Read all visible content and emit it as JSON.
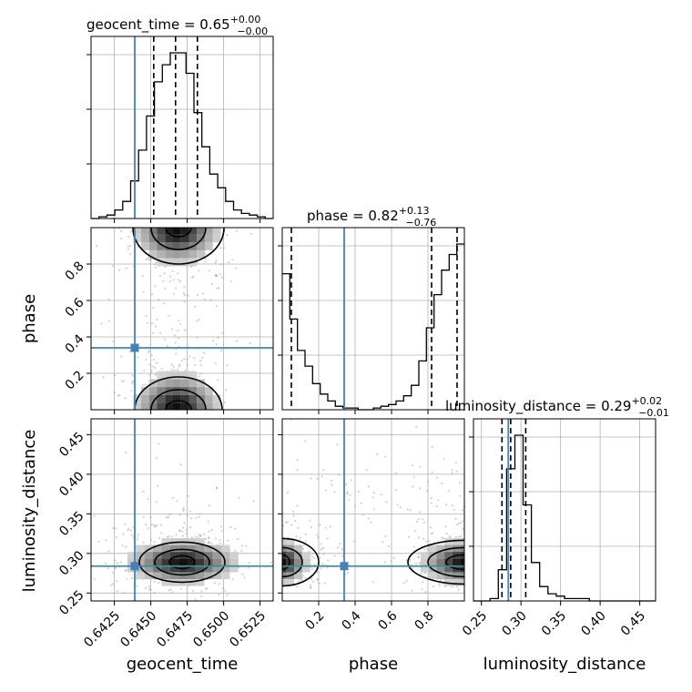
{
  "chart_data": {
    "type": "corner",
    "parameters": [
      "geocent_time",
      "phase",
      "luminosity_distance"
    ],
    "injection": {
      "geocent_time": 0.6439,
      "phase": 0.34,
      "luminosity_distance": 0.284
    },
    "titles": [
      {
        "param": "geocent_time",
        "name": "geocent_time",
        "median": "0.65",
        "plus": "+0.00",
        "minus": "−0.00"
      },
      {
        "param": "phase",
        "name": "phase",
        "median": "0.82",
        "plus": "+0.13",
        "minus": "−0.76"
      },
      {
        "param": "luminosity_distance",
        "name": "luminosity_distance",
        "median": "0.29",
        "plus": "+0.02",
        "minus": "−0.01"
      }
    ],
    "ranges": {
      "geocent_time": [
        0.6409,
        0.6534
      ],
      "phase": [
        0.0,
        1.0
      ],
      "luminosity_distance": [
        0.24,
        0.47
      ]
    },
    "ticks": {
      "geocent_time": [
        "0.6425",
        "0.6450",
        "0.6475",
        "0.6500",
        "0.6525"
      ],
      "phase": [
        "0.2",
        "0.4",
        "0.6",
        "0.8"
      ],
      "luminosity_distance": [
        "0.25",
        "0.30",
        "0.35",
        "0.40",
        "0.45"
      ]
    },
    "quantiles": {
      "geocent_time": [
        0.6452,
        0.6467,
        0.6482
      ],
      "phase": [
        0.05,
        0.82,
        0.96
      ],
      "luminosity_distance": [
        0.276,
        0.287,
        0.306
      ]
    },
    "histograms": {
      "geocent_time": {
        "edges": [
          0.6409,
          0.6534
        ],
        "counts": [
          0,
          1,
          2,
          5,
          10,
          22,
          40,
          60,
          80,
          90,
          97,
          97,
          85,
          62,
          42,
          26,
          18,
          10,
          5,
          3,
          2,
          1,
          0
        ]
      },
      "phase": {
        "edges": [
          0.0,
          1.0
        ],
        "counts": [
          78,
          52,
          34,
          25,
          15,
          9,
          5,
          2,
          1,
          1,
          0,
          0,
          1,
          2,
          3,
          5,
          8,
          14,
          28,
          47,
          66,
          80,
          89,
          95
        ]
      },
      "luminosity_distance": {
        "edges": [
          0.24,
          0.47
        ],
        "counts": [
          0,
          0,
          1,
          13,
          55,
          69,
          40,
          16,
          6,
          3,
          2,
          1,
          1,
          1,
          0,
          0,
          0,
          0,
          0,
          0,
          0,
          0
        ]
      }
    },
    "grid": true,
    "colors": {
      "injection": "#4682b4",
      "hist": "#000000",
      "grid": "#b0b0b0",
      "points": "#9a9a9a"
    }
  }
}
